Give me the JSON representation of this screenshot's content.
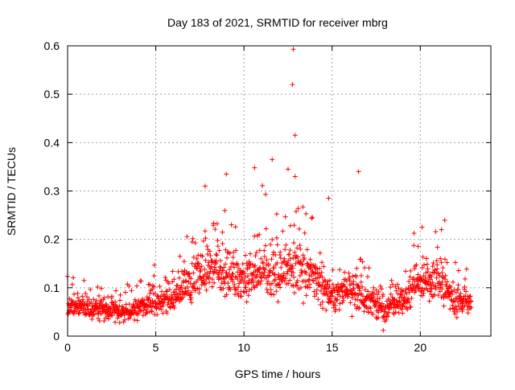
{
  "chart_data": {
    "type": "scatter",
    "title": "Day 183 of 2021, SRMTID for receiver mbrg",
    "xlabel": "GPS time / hours",
    "ylabel": "SRMTID / TECUs",
    "xlim": [
      0,
      24
    ],
    "ylim": [
      0,
      0.6
    ],
    "xticks": [
      0,
      5,
      10,
      15,
      20
    ],
    "xtick_labels": [
      "0",
      "5",
      "10",
      "15",
      "20"
    ],
    "yticks": [
      0,
      0.1,
      0.2,
      0.3,
      0.4,
      0.5,
      0.6
    ],
    "ytick_labels": [
      "0",
      "0.1",
      "0.2",
      "0.3",
      "0.4",
      "0.5",
      "0.6"
    ],
    "grid": true,
    "marker": "plus",
    "color": "#ff0000",
    "data_extent_hours": [
      0,
      22.9
    ],
    "baseline_envelope": [
      {
        "hour": 0,
        "level": 0.06
      },
      {
        "hour": 1,
        "level": 0.058
      },
      {
        "hour": 2,
        "level": 0.055
      },
      {
        "hour": 3,
        "level": 0.048
      },
      {
        "hour": 4,
        "level": 0.055
      },
      {
        "hour": 5,
        "level": 0.07
      },
      {
        "hour": 6,
        "level": 0.075
      },
      {
        "hour": 7,
        "level": 0.12
      },
      {
        "hour": 8,
        "level": 0.14
      },
      {
        "hour": 9,
        "level": 0.13
      },
      {
        "hour": 10,
        "level": 0.11
      },
      {
        "hour": 11,
        "level": 0.13
      },
      {
        "hour": 12,
        "level": 0.13
      },
      {
        "hour": 13,
        "level": 0.14
      },
      {
        "hour": 14,
        "level": 0.12
      },
      {
        "hour": 15,
        "level": 0.08
      },
      {
        "hour": 16,
        "level": 0.09
      },
      {
        "hour": 17,
        "level": 0.07
      },
      {
        "hour": 18,
        "level": 0.055
      },
      {
        "hour": 19,
        "level": 0.07
      },
      {
        "hour": 20,
        "level": 0.11
      },
      {
        "hour": 21,
        "level": 0.11
      },
      {
        "hour": 22,
        "level": 0.075
      },
      {
        "hour": 23,
        "level": 0.07
      }
    ],
    "notable_points": [
      {
        "x": 12.8,
        "y": 0.593
      },
      {
        "x": 12.75,
        "y": 0.52
      },
      {
        "x": 12.9,
        "y": 0.415
      },
      {
        "x": 12.9,
        "y": 0.33
      },
      {
        "x": 11.6,
        "y": 0.365
      },
      {
        "x": 10.6,
        "y": 0.348
      },
      {
        "x": 12.5,
        "y": 0.345
      },
      {
        "x": 16.5,
        "y": 0.34
      },
      {
        "x": 9.0,
        "y": 0.335
      },
      {
        "x": 7.8,
        "y": 0.31
      },
      {
        "x": 14.8,
        "y": 0.285
      },
      {
        "x": 20.1,
        "y": 0.225
      },
      {
        "x": 21.2,
        "y": 0.22
      },
      {
        "x": 17.9,
        "y": 0.012
      }
    ]
  }
}
